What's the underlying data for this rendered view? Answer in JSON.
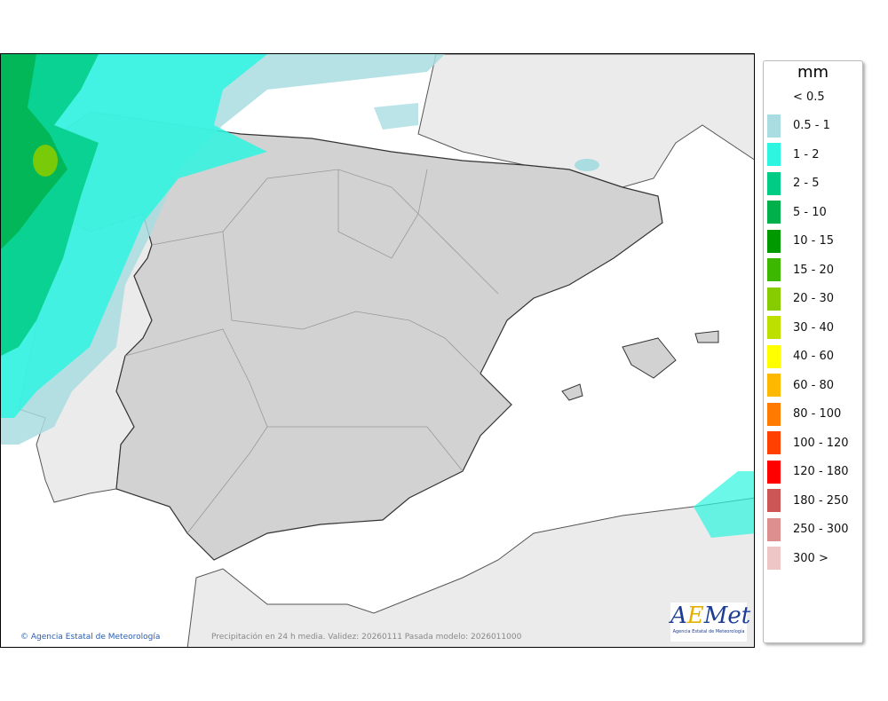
{
  "map": {
    "copyright": "Agencia Estatal de Meteorología",
    "caption": "Precipitación en 24 h media. Validez: 20260111 Pasada modelo: 2026011000",
    "logo_text": "AEMet",
    "logo_subtext": "Agencia Estatal de Meteorología"
  },
  "legend": {
    "unit": "mm",
    "items": [
      {
        "label": "< 0.5",
        "color": ""
      },
      {
        "label": "0.5 - 1",
        "color": "#a9dde2"
      },
      {
        "label": "1 - 2",
        "color": "#2ef5e0"
      },
      {
        "label": "2 - 5",
        "color": "#00cc85"
      },
      {
        "label": "5 - 10",
        "color": "#00b04a"
      },
      {
        "label": "10 - 15",
        "color": "#009a00"
      },
      {
        "label": "15 - 20",
        "color": "#3db800"
      },
      {
        "label": "20 - 30",
        "color": "#86cc00"
      },
      {
        "label": "30 - 40",
        "color": "#bde000"
      },
      {
        "label": "40 - 60",
        "color": "#ffff00"
      },
      {
        "label": "60 - 80",
        "color": "#ffb800"
      },
      {
        "label": "80 - 100",
        "color": "#ff7a00"
      },
      {
        "label": "100 - 120",
        "color": "#ff4000"
      },
      {
        "label": "120 - 180",
        "color": "#ff0000"
      },
      {
        "label": "180 - 250",
        "color": "#cc5555"
      },
      {
        "label": "250 - 300",
        "color": "#dd8f8f"
      },
      {
        "label": "300 >",
        "color": "#efc6c6"
      }
    ]
  }
}
